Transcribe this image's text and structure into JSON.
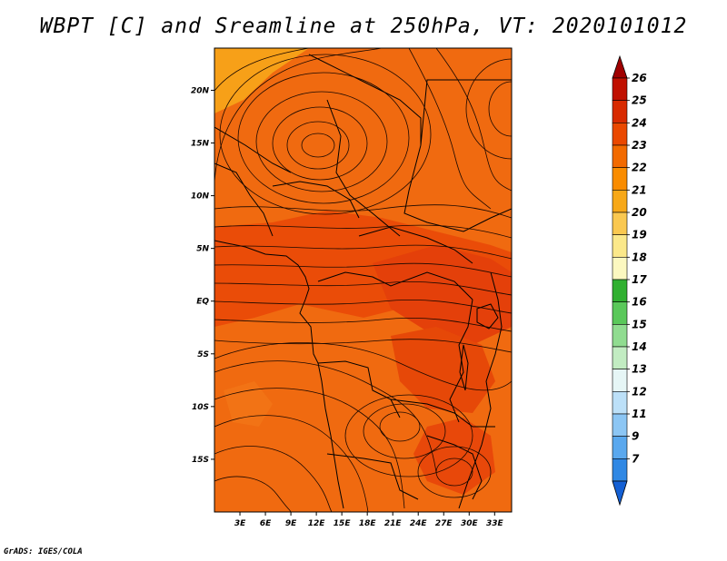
{
  "title": "WBPT [C] and Sreamline at 250hPa, VT: 2020101012",
  "credit": "GrADS: IGES/COLA",
  "map": {
    "lon_range": [
      0,
      35
    ],
    "lat_range": [
      -20,
      24
    ],
    "field_range_c": "21-24",
    "x_ticks": [
      "3E",
      "6E",
      "9E",
      "12E",
      "15E",
      "18E",
      "21E",
      "24E",
      "27E",
      "30E",
      "33E"
    ],
    "y_ticks": [
      "20N",
      "15N",
      "10N",
      "5N",
      "EQ",
      "5S",
      "10S",
      "15S"
    ]
  },
  "colorbar": {
    "labels": [
      "26",
      "25",
      "24",
      "23",
      "22",
      "21",
      "20",
      "19",
      "18",
      "17",
      "16",
      "15",
      "14",
      "13",
      "12",
      "11",
      "9",
      "7"
    ],
    "colors": [
      "#a00000",
      "#c01000",
      "#d82a00",
      "#ea4800",
      "#f26a00",
      "#f98c00",
      "#f7a818",
      "#fac850",
      "#fbe88a",
      "#fcf8c0",
      "#30b030",
      "#5ac85a",
      "#90dc90",
      "#c2ecc2",
      "#e6f6f6",
      "#bce0f8",
      "#8cc6f4",
      "#5aa8ee",
      "#3088e4",
      "#1460d4"
    ]
  }
}
